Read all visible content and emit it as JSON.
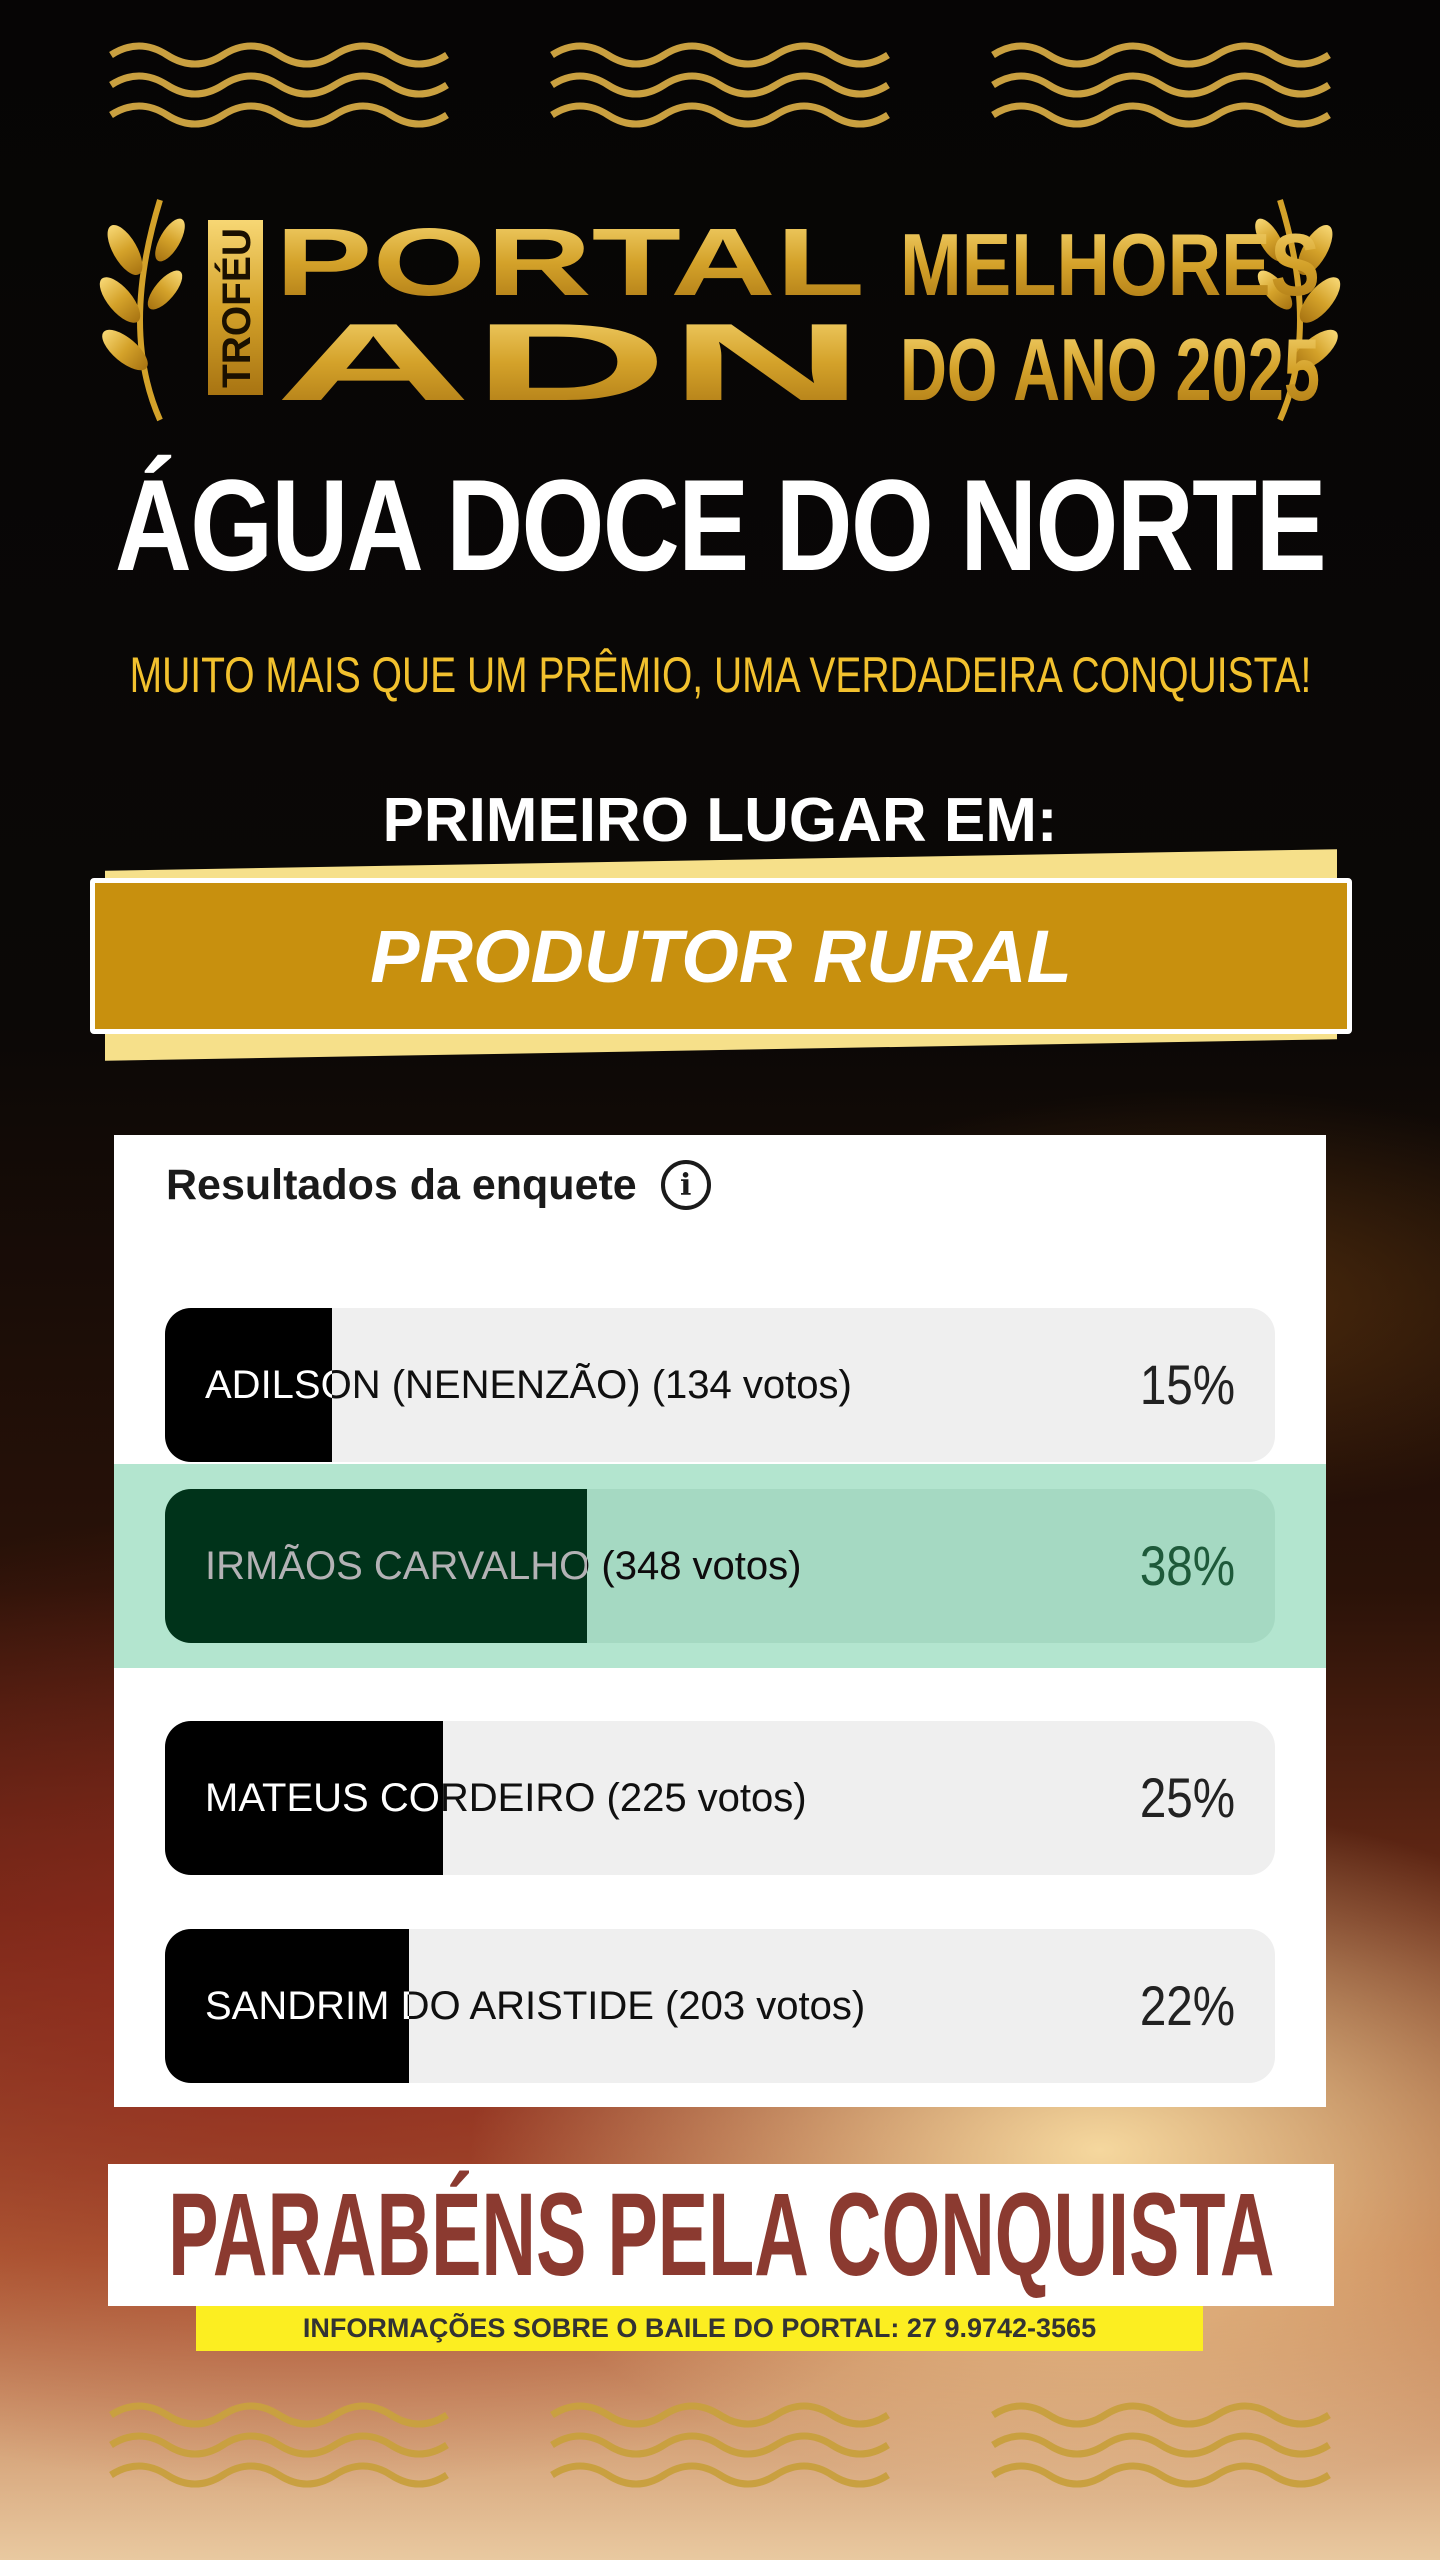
{
  "logo": {
    "trofeu": "TROFÉU",
    "portal": "PORTAL",
    "adn": "ADN",
    "melhores": "MELHORES",
    "do_ano": "DO ANO 2025"
  },
  "title": "ÁGUA DOCE DO NORTE",
  "subtitle": "MUITO MAIS QUE UM PRÊMIO, UMA VERDADEIRA CONQUISTA!",
  "first_place": "PRIMEIRO LUGAR EM:",
  "category": "PRODUTOR RURAL",
  "poll": {
    "title": "Resultados da enquete",
    "info_icon": "info-icon",
    "options": [
      {
        "label": "ADILSON (NENENZÃO) (134 votos)",
        "percent": 15,
        "percent_label": "15%",
        "winner": false
      },
      {
        "label": "IRMÃOS CARVALHO (348 votos)",
        "percent": 38,
        "percent_label": "38%",
        "winner": true
      },
      {
        "label": "MATEUS CORDEIRO (225 votos)",
        "percent": 25,
        "percent_label": "25%",
        "winner": false
      },
      {
        "label": "SANDRIM DO ARISTIDE (203 votos)",
        "percent": 22,
        "percent_label": "22%",
        "winner": false
      }
    ],
    "colors": {
      "bar_bg": "#efefef",
      "fill": "#000000",
      "winner_band": "#b3e5cf",
      "winner_fill": "#00331a"
    }
  },
  "congrats": "PARABÉNS PELA CONQUISTA",
  "info_line": "INFORMAÇÕES SOBRE O BAILE DO PORTAL: 27 9.9742-3565",
  "colors": {
    "gold": "#c8900e",
    "subtitle": "#f2c12e",
    "congrats": "#8b3a30",
    "strip": "#fcee21"
  }
}
